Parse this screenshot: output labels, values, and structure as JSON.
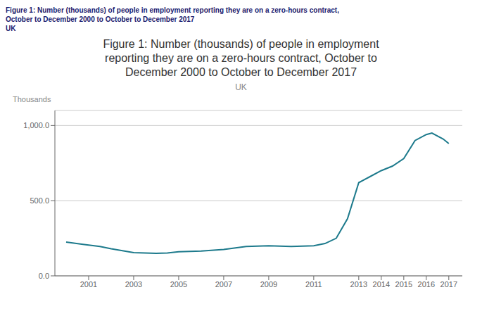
{
  "chart_data": {
    "type": "line",
    "title": "Figure 1: Number (thousands) of people in employment\nreporting they are on a zero-hours contract, October to\nDecember 2000 to October to December 2017",
    "subtitle": "UK",
    "annotations": [
      "Figure 1: Number (thousands) of people in employment reporting they are on a zero-hours contract,",
      "October to December 2000 to October to December 2017",
      "UK"
    ],
    "y_label": "Thousands",
    "x": [
      2000.0,
      2000.75,
      2001.5,
      2002.0,
      2003.0,
      2004.0,
      2004.5,
      2005.0,
      2006.0,
      2007.0,
      2008.0,
      2009.0,
      2009.5,
      2010.0,
      2011.0,
      2011.5,
      2012.0,
      2012.5,
      2013.0,
      2013.5,
      2014.0,
      2014.5,
      2015.0,
      2015.5,
      2016.0,
      2016.25,
      2016.75,
      2017.0
    ],
    "values": [
      225,
      210,
      195,
      180,
      155,
      150,
      152,
      160,
      165,
      175,
      195,
      200,
      198,
      195,
      200,
      215,
      250,
      380,
      620,
      660,
      700,
      730,
      780,
      900,
      940,
      950,
      910,
      880
    ],
    "color": "#1d7a8c",
    "xlim": [
      1999.5,
      2017.6
    ],
    "xticks": [
      2001,
      2003,
      2005,
      2007,
      2009,
      2011,
      2013,
      2014,
      2015,
      2016,
      2017
    ],
    "ylim": [
      0,
      1100
    ],
    "yticks": [
      {
        "value": 0,
        "label": "0.0"
      },
      {
        "value": 500,
        "label": "500.0"
      },
      {
        "value": 1000,
        "label": "1,000.0"
      }
    ],
    "grid": true
  }
}
